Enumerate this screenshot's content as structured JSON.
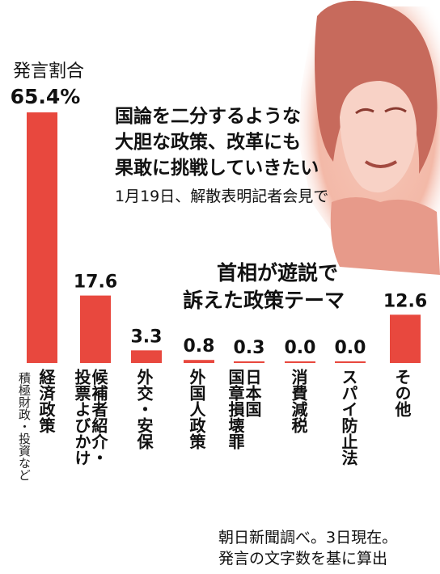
{
  "header": {
    "metric_label": "発言割合",
    "quote_lines": [
      "国論を二分するような",
      "大胆な政策、改革にも",
      "果敢に挑戦していきたい"
    ],
    "quote_source": "1月19日、解散表明記者会見で"
  },
  "footer": {
    "lines": [
      "朝日新聞調べ。3日現在。",
      "発言の文字数を基に算出"
    ]
  },
  "colors": {
    "bar": "#e8483e",
    "photo_bg": "#f1b2a2",
    "text": "#111111"
  },
  "chart_data": {
    "type": "bar",
    "title_lines": [
      "首相が遊説で",
      "訴えた政策テーマ"
    ],
    "categories": [
      "経済政策",
      "候補者紹介・投票よびかけ",
      "外交・安保",
      "外国人政策",
      "日本国国章損壊罪",
      "消費減税",
      "スパイ防止法",
      "その他"
    ],
    "category_label_columns": [
      [
        "経済政策"
      ],
      [
        "候補者紹介・",
        "投票よびかけ"
      ],
      [
        "外交・安保"
      ],
      [
        "外国人政策"
      ],
      [
        "日本国",
        "国章損壊罪"
      ],
      [
        "消費減税"
      ],
      [
        "スパイ防止法"
      ],
      [
        "その他"
      ]
    ],
    "category_sublabels": [
      "積極財政・投資など",
      "",
      "",
      "",
      "",
      "",
      "",
      ""
    ],
    "value_labels": [
      "65.4%",
      "17.6",
      "3.3",
      "0.8",
      "0.3",
      "0.0",
      "0.0",
      "12.6"
    ],
    "values": [
      65.4,
      17.6,
      3.3,
      0.8,
      0.3,
      0.0,
      0.0,
      12.6
    ],
    "unit": "%",
    "ylim": [
      0,
      65.4
    ],
    "grid": false,
    "legend": "none"
  }
}
